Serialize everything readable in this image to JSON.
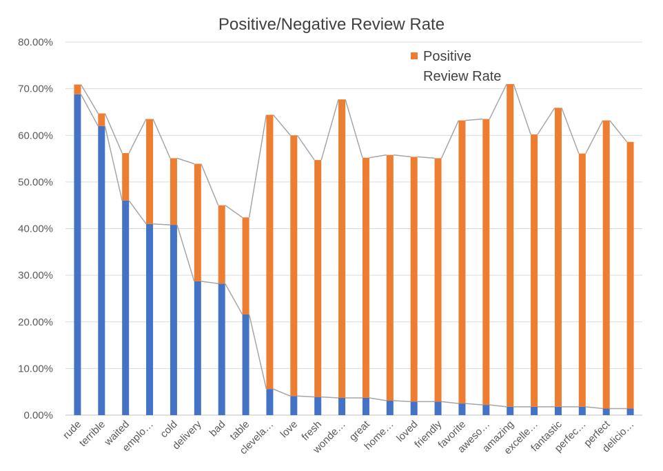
{
  "chart_data": {
    "type": "bar",
    "stacked": true,
    "title": "Positive/Negative Review Rate",
    "categories": [
      "rude",
      "terrible",
      "waited",
      "emplo…",
      "cold",
      "delivery",
      "bad",
      "table",
      "clevela…",
      "love",
      "fresh",
      "wonde…",
      "great",
      "home…",
      "loved",
      "friendly",
      "favorite",
      "aweso…",
      "amazing",
      "excelle…",
      "fantastic",
      "perfec…",
      "perfect",
      "delicio…"
    ],
    "series": [
      {
        "name": "",
        "color": "#4472C4",
        "values": [
          68.8,
          62.0,
          46.0,
          41.0,
          40.8,
          28.7,
          28.2,
          21.6,
          5.6,
          4.1,
          3.9,
          3.7,
          3.7,
          3.1,
          2.9,
          2.9,
          2.5,
          2.2,
          1.8,
          1.8,
          1.8,
          1.8,
          1.4,
          1.4
        ]
      },
      {
        "name": "Positive\nReview Rate",
        "color": "#ED7D31",
        "values": [
          2.1,
          2.7,
          10.2,
          22.5,
          14.3,
          25.2,
          16.8,
          20.8,
          58.8,
          55.9,
          50.8,
          64.0,
          51.5,
          52.7,
          52.5,
          52.2,
          60.7,
          61.3,
          69.2,
          58.4,
          64.1,
          54.3,
          61.8,
          57.2
        ]
      }
    ],
    "series_lines": true,
    "ylim": [
      0,
      80
    ],
    "ytick_step": 10,
    "ytick_labels": [
      "0.00%",
      "10.00%",
      "20.00%",
      "30.00%",
      "40.00%",
      "50.00%",
      "60.00%",
      "70.00%",
      "80.00%"
    ],
    "grid": true,
    "legend": "top-right",
    "legend_label_lines": [
      "Positive",
      "Review Rate"
    ],
    "line_color": "#A5A5A5",
    "grid_color": "#D9D9D9"
  }
}
